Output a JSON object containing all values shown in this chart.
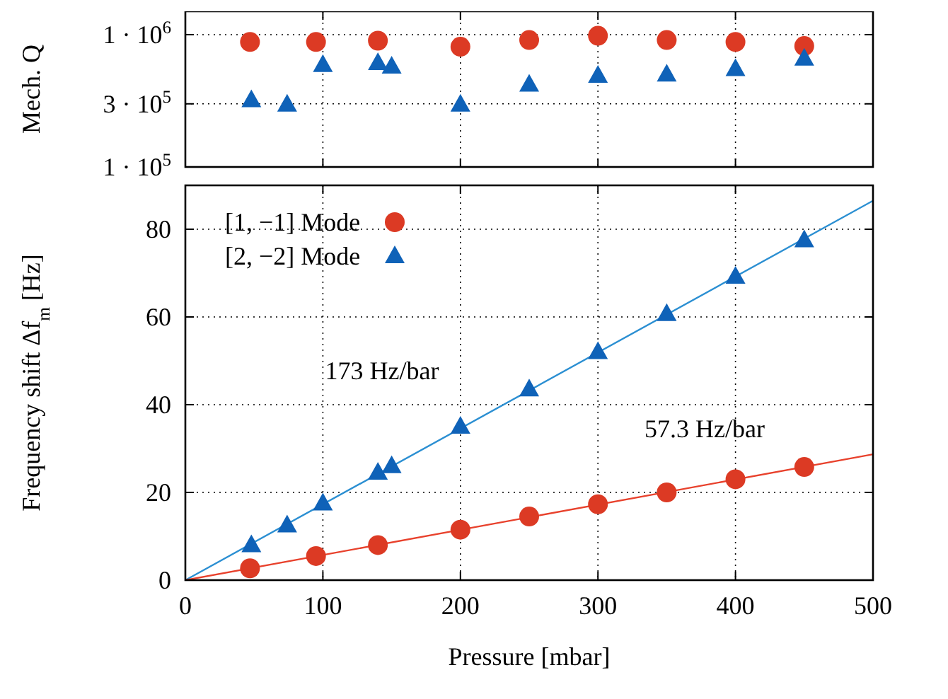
{
  "chart_data": [
    {
      "type": "scatter",
      "ylabel": "Mech. Q",
      "log": "y",
      "grid": true,
      "legend": false,
      "tick_labels": "y",
      "xlim": [
        0,
        500
      ],
      "xticks": [
        0,
        100,
        200,
        300,
        400,
        500
      ],
      "ylim": [
        100000,
        1500000
      ],
      "yticks": [
        {
          "value": 100000,
          "label": "1 · 10$^{5}$"
        },
        {
          "value": 300000,
          "label": "3 · 10$^{5}$"
        },
        {
          "value": 1000000,
          "label": "1 · 10$^{6}$"
        }
      ],
      "series": [
        {
          "marker": "circle",
          "color": "#dc3a24",
          "x": [
            47,
            95,
            140,
            200,
            250,
            300,
            350,
            400,
            450
          ],
          "values": [
            880000,
            880000,
            900000,
            810000,
            910000,
            980000,
            910000,
            880000,
            820000
          ]
        },
        {
          "marker": "triangle",
          "color": "#0f62b8",
          "x": [
            48,
            74,
            100,
            140,
            150,
            200,
            250,
            300,
            350,
            400,
            450
          ],
          "values": [
            320000,
            296000,
            590000,
            610000,
            575000,
            296000,
            420000,
            490000,
            500000,
            550000,
            660000
          ]
        }
      ]
    },
    {
      "type": "scatter",
      "xlabel": "Pressure [mbar]",
      "ylabel": "Frequency shift Δf$_{m}$ [Hz]",
      "grid": true,
      "legend": "top left",
      "xlim": [
        0,
        500
      ],
      "xticks": [
        0,
        100,
        200,
        300,
        400,
        500
      ],
      "ylim": [
        0,
        90
      ],
      "yticks": [
        0,
        20,
        40,
        60,
        80
      ],
      "annotations": [
        "173 Hz/bar",
        "57.3 Hz/bar"
      ],
      "series": [
        {
          "type": "line",
          "marker": "none",
          "line_style": "solid",
          "color": "#2b8fd2",
          "x": [
            0,
            500
          ],
          "values": [
            0,
            86.5
          ]
        },
        {
          "type": "line",
          "marker": "none",
          "line_style": "solid",
          "color": "#e8412c",
          "x": [
            0,
            500
          ],
          "values": [
            0,
            28.7
          ]
        },
        {
          "name": "[1, −1] Mode",
          "marker": "circle",
          "color": "#dc3a24",
          "x": [
            47,
            95,
            140,
            200,
            250,
            300,
            350,
            400,
            450
          ],
          "values": [
            2.7,
            5.5,
            8,
            11.5,
            14.5,
            17.3,
            20,
            23,
            25.8
          ]
        },
        {
          "name": "[2, −2] Mode",
          "marker": "triangle",
          "color": "#0f62b8",
          "x": [
            48,
            74,
            100,
            140,
            150,
            200,
            250,
            300,
            350,
            400,
            450
          ],
          "values": [
            8,
            12.5,
            17.5,
            24.5,
            26,
            35,
            43.5,
            52,
            60.7,
            69.2,
            77.5
          ]
        }
      ]
    }
  ]
}
